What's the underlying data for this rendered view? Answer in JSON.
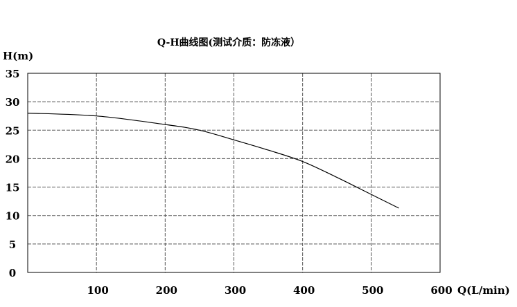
{
  "chart_data": {
    "type": "line",
    "title": "Q-H曲线图(测试介质：防冻液）",
    "xlabel": "Q(L/min)",
    "ylabel": "H(m)",
    "xlim": [
      0,
      600
    ],
    "ylim": [
      0,
      35
    ],
    "x_ticks": [
      100,
      200,
      300,
      400,
      500,
      600
    ],
    "y_ticks": [
      0,
      5,
      10,
      15,
      20,
      25,
      30,
      35
    ],
    "grid": true,
    "grid_style": "dashed",
    "line_color": "#000000",
    "series": [
      {
        "x": [
          0,
          100,
          200,
          250,
          300,
          350,
          400,
          450,
          500,
          540
        ],
        "y": [
          28.0,
          27.5,
          26.0,
          25.0,
          23.3,
          21.5,
          19.5,
          16.7,
          13.7,
          11.3
        ]
      }
    ]
  }
}
